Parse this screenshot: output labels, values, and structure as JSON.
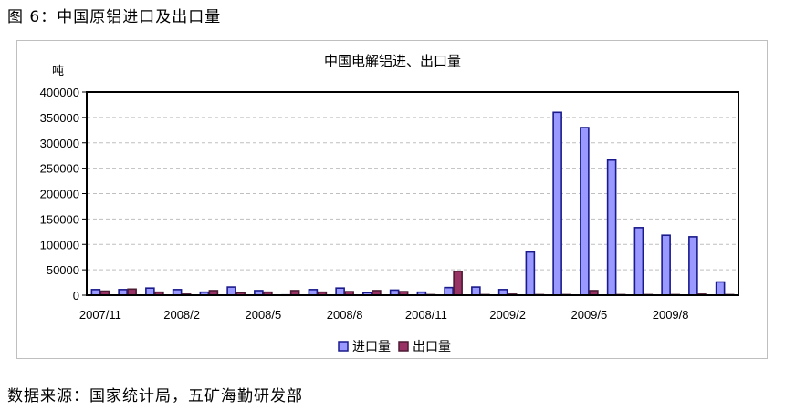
{
  "figure_title": "图 6：中国原铝进口及出口量",
  "source": "数据来源：国家统计局，五矿海勤研发部",
  "colors": {
    "import_fill": "#9999ff",
    "import_edge": "#1a1a8c",
    "export_fill": "#993366",
    "export_edge": "#4d1a33",
    "grid": "#bfbfbf",
    "frame": "#000000"
  },
  "chart_data": {
    "type": "bar",
    "title": "中国电解铝进、出口量",
    "ylabel": "吨",
    "xlabel": "",
    "ylim": [
      0,
      400000
    ],
    "yticks": [
      0,
      50000,
      100000,
      150000,
      200000,
      250000,
      300000,
      350000,
      400000
    ],
    "ytick_labels": [
      "0",
      "50000",
      "100000",
      "150000",
      "200000",
      "250000",
      "300000",
      "350000",
      "400000"
    ],
    "grid": true,
    "legend_position": "bottom",
    "categories": [
      "2007/11",
      "2007/12",
      "2008/1",
      "2008/2",
      "2008/3",
      "2008/4",
      "2008/5",
      "2008/6",
      "2008/7",
      "2008/8",
      "2008/9",
      "2008/10",
      "2008/11",
      "2008/12",
      "2009/1",
      "2009/2",
      "2009/3",
      "2009/4",
      "2009/5",
      "2009/6",
      "2009/7",
      "2009/8",
      "2009/9",
      "2009/10"
    ],
    "xtick_labels": [
      "2007/11",
      "",
      "",
      "2008/2",
      "",
      "",
      "2008/5",
      "",
      "",
      "2008/8",
      "",
      "",
      "2008/11",
      "",
      "",
      "2009/2",
      "",
      "",
      "2009/5",
      "",
      "",
      "2009/8",
      "",
      ""
    ],
    "series": [
      {
        "name": "进口量",
        "values": [
          11000,
          11000,
          14000,
          11000,
          6000,
          16000,
          9000,
          500,
          11000,
          14000,
          5000,
          10000,
          6000,
          15000,
          16000,
          11000,
          85000,
          360000,
          330000,
          266000,
          133000,
          118000,
          115000,
          26000
        ]
      },
      {
        "name": "出口量",
        "values": [
          8000,
          12000,
          6000,
          2000,
          9000,
          5000,
          6000,
          9000,
          6000,
          7000,
          9000,
          7000,
          1000,
          47000,
          1000,
          2000,
          1000,
          1000,
          9000,
          1000,
          1000,
          1000,
          2000,
          1000
        ]
      }
    ]
  }
}
